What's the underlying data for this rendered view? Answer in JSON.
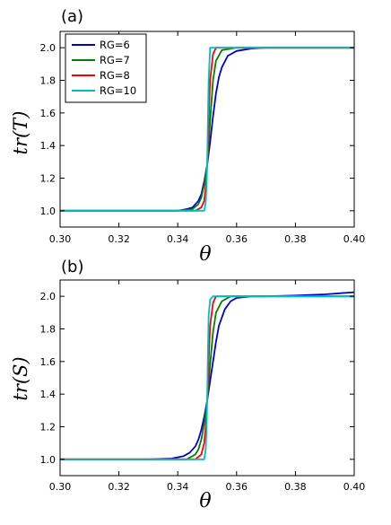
{
  "chart_data": [
    {
      "type": "line",
      "panel_label": "(a)",
      "ylabel": "tr(T)",
      "xlabel": "θ",
      "xlim": [
        0.3,
        0.4
      ],
      "ylim": [
        0.9,
        2.1
      ],
      "x_ticks": [
        "0.30",
        "0.32",
        "0.34",
        "0.36",
        "0.38",
        "0.40"
      ],
      "y_ticks": [
        "1.0",
        "1.2",
        "1.4",
        "1.6",
        "1.8",
        "2.0"
      ],
      "grid": false,
      "legend_position": "upper-left",
      "series": [
        {
          "name": "RG=6",
          "color": "#0000cc",
          "x": [
            0.3,
            0.32,
            0.335,
            0.34,
            0.343,
            0.345,
            0.347,
            0.348,
            0.349,
            0.35,
            0.351,
            0.352,
            0.353,
            0.354,
            0.355,
            0.357,
            0.36,
            0.365,
            0.37,
            0.38,
            0.4
          ],
          "y": [
            1.0,
            1.0,
            1.0,
            1.0,
            1.01,
            1.02,
            1.06,
            1.1,
            1.18,
            1.28,
            1.42,
            1.58,
            1.72,
            1.82,
            1.88,
            1.95,
            1.98,
            1.995,
            2.0,
            2.0,
            2.0
          ]
        },
        {
          "name": "RG=7",
          "color": "#008000",
          "x": [
            0.3,
            0.34,
            0.345,
            0.347,
            0.348,
            0.349,
            0.35,
            0.351,
            0.352,
            0.353,
            0.355,
            0.36,
            0.4
          ],
          "y": [
            1.0,
            1.0,
            1.01,
            1.04,
            1.08,
            1.16,
            1.28,
            1.55,
            1.8,
            1.92,
            1.985,
            2.0,
            2.0
          ]
        },
        {
          "name": "RG=8",
          "color": "#ff0000",
          "x": [
            0.3,
            0.346,
            0.348,
            0.349,
            0.3495,
            0.35,
            0.3505,
            0.351,
            0.352,
            0.353,
            0.4
          ],
          "y": [
            1.0,
            1.0,
            1.02,
            1.06,
            1.15,
            1.28,
            1.55,
            1.8,
            1.96,
            2.0,
            2.0
          ]
        },
        {
          "name": "RG=10",
          "color": "#00bfbf",
          "x": [
            0.3,
            0.349,
            0.3495,
            0.3498,
            0.35,
            0.3502,
            0.3505,
            0.351,
            0.4
          ],
          "y": [
            1.0,
            1.0,
            1.05,
            1.15,
            1.28,
            1.5,
            1.8,
            2.0,
            2.0
          ]
        }
      ]
    },
    {
      "type": "line",
      "panel_label": "(b)",
      "ylabel": "tr(S)",
      "xlabel": "θ",
      "xlim": [
        0.3,
        0.4
      ],
      "ylim": [
        0.9,
        2.1
      ],
      "x_ticks": [
        "0.30",
        "0.32",
        "0.34",
        "0.36",
        "0.38",
        "0.40"
      ],
      "y_ticks": [
        "1.0",
        "1.2",
        "1.4",
        "1.6",
        "1.8",
        "2.0"
      ],
      "grid": false,
      "series": [
        {
          "name": "RG=6",
          "color": "#0000cc",
          "x": [
            0.3,
            0.33,
            0.338,
            0.342,
            0.344,
            0.346,
            0.347,
            0.348,
            0.349,
            0.35,
            0.351,
            0.352,
            0.353,
            0.354,
            0.356,
            0.358,
            0.36,
            0.365,
            0.37,
            0.38,
            0.39,
            0.4
          ],
          "y": [
            1.0,
            1.0,
            1.005,
            1.02,
            1.04,
            1.08,
            1.12,
            1.18,
            1.26,
            1.36,
            1.48,
            1.6,
            1.72,
            1.82,
            1.92,
            1.97,
            1.99,
            2.0,
            2.0,
            2.005,
            2.012,
            2.025
          ]
        },
        {
          "name": "RG=7",
          "color": "#008000",
          "x": [
            0.3,
            0.343,
            0.346,
            0.347,
            0.348,
            0.349,
            0.35,
            0.351,
            0.352,
            0.353,
            0.355,
            0.358,
            0.4
          ],
          "y": [
            1.0,
            1.0,
            1.03,
            1.06,
            1.12,
            1.22,
            1.36,
            1.58,
            1.78,
            1.9,
            1.97,
            2.0,
            2.0
          ]
        },
        {
          "name": "RG=8",
          "color": "#ff0000",
          "x": [
            0.3,
            0.346,
            0.348,
            0.349,
            0.3495,
            0.35,
            0.3505,
            0.351,
            0.352,
            0.353,
            0.4
          ],
          "y": [
            1.0,
            1.0,
            1.03,
            1.1,
            1.2,
            1.36,
            1.6,
            1.82,
            1.96,
            2.0,
            2.0
          ]
        },
        {
          "name": "RG=10",
          "color": "#00bfbf",
          "x": [
            0.3,
            0.349,
            0.3495,
            0.3498,
            0.35,
            0.3502,
            0.3505,
            0.351,
            0.352,
            0.4
          ],
          "y": [
            1.0,
            1.0,
            1.06,
            1.18,
            1.36,
            1.6,
            1.88,
            1.98,
            2.0,
            2.0
          ]
        }
      ]
    }
  ]
}
